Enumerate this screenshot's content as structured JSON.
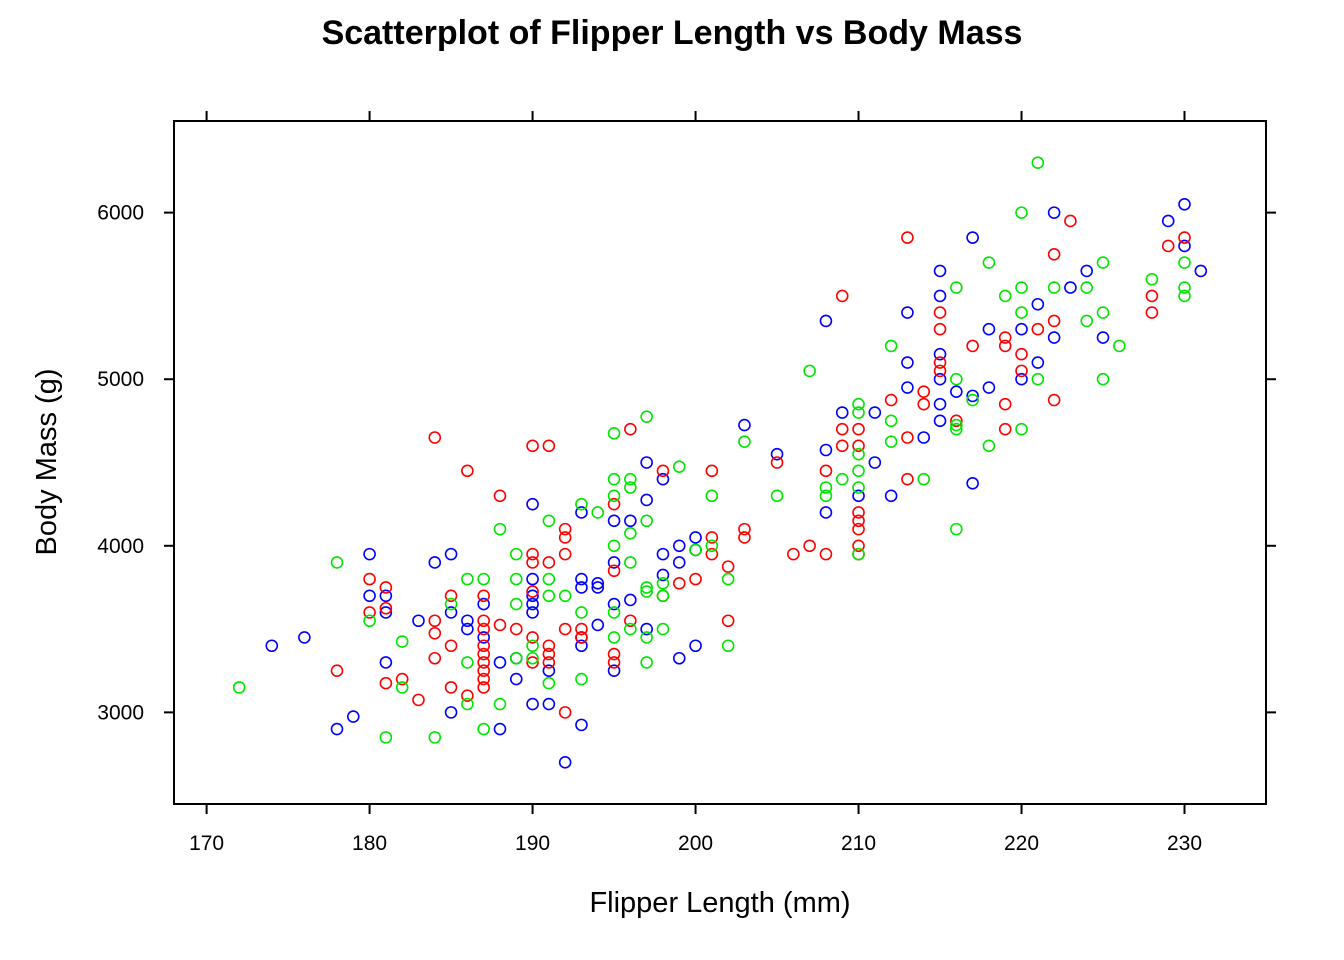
{
  "chart_data": {
    "type": "scatter",
    "title": "Scatterplot of Flipper Length vs Body Mass",
    "xlabel": "Flipper Length (mm)",
    "ylabel": "Body Mass (g)",
    "xlim": [
      168,
      235
    ],
    "ylim": [
      2450,
      6550
    ],
    "xticks": [
      170,
      180,
      190,
      200,
      210,
      220,
      230
    ],
    "yticks": [
      3000,
      4000,
      5000,
      6000
    ],
    "grid": false,
    "legend": "none",
    "marker": "open-circle",
    "series": [
      {
        "color": "#0000ff",
        "points": [
          [
            174,
            3400
          ],
          [
            176,
            3450
          ],
          [
            178,
            2900
          ],
          [
            179,
            2975
          ],
          [
            180,
            3950
          ],
          [
            180,
            3700
          ],
          [
            181,
            3700
          ],
          [
            181,
            3600
          ],
          [
            181,
            3300
          ],
          [
            183,
            3550
          ],
          [
            184,
            3900
          ],
          [
            185,
            3950
          ],
          [
            185,
            3000
          ],
          [
            185,
            3600
          ],
          [
            186,
            3500
          ],
          [
            186,
            3550
          ],
          [
            187,
            3650
          ],
          [
            187,
            3450
          ],
          [
            188,
            2900
          ],
          [
            188,
            3300
          ],
          [
            189,
            3200
          ],
          [
            189,
            3325
          ],
          [
            190,
            4250
          ],
          [
            190,
            3800
          ],
          [
            190,
            3700
          ],
          [
            190,
            3650
          ],
          [
            190,
            3600
          ],
          [
            190,
            3050
          ],
          [
            191,
            3050
          ],
          [
            191,
            3250
          ],
          [
            192,
            2700
          ],
          [
            193,
            2925
          ],
          [
            193,
            4200
          ],
          [
            193,
            3800
          ],
          [
            193,
            3750
          ],
          [
            193,
            3450
          ],
          [
            193,
            3400
          ],
          [
            194,
            3775
          ],
          [
            194,
            3750
          ],
          [
            194,
            3525
          ],
          [
            195,
            4150
          ],
          [
            195,
            3900
          ],
          [
            195,
            3650
          ],
          [
            195,
            3250
          ],
          [
            196,
            4150
          ],
          [
            196,
            3675
          ],
          [
            197,
            4500
          ],
          [
            197,
            4275
          ],
          [
            197,
            3500
          ],
          [
            198,
            4400
          ],
          [
            198,
            3950
          ],
          [
            198,
            3825
          ],
          [
            199,
            4000
          ],
          [
            199,
            3900
          ],
          [
            199,
            3325
          ],
          [
            200,
            4050
          ],
          [
            200,
            3975
          ],
          [
            200,
            3400
          ],
          [
            203,
            4725
          ],
          [
            205,
            4550
          ],
          [
            208,
            5350
          ],
          [
            208,
            4575
          ],
          [
            208,
            4200
          ],
          [
            209,
            4800
          ],
          [
            210,
            4300
          ],
          [
            211,
            4800
          ],
          [
            211,
            4500
          ],
          [
            212,
            4300
          ],
          [
            213,
            5400
          ],
          [
            213,
            5100
          ],
          [
            213,
            4950
          ],
          [
            214,
            4650
          ],
          [
            215,
            5650
          ],
          [
            215,
            5500
          ],
          [
            215,
            5150
          ],
          [
            215,
            5000
          ],
          [
            215,
            4850
          ],
          [
            215,
            4750
          ],
          [
            216,
            4925
          ],
          [
            217,
            5850
          ],
          [
            217,
            4900
          ],
          [
            217,
            4375
          ],
          [
            218,
            5300
          ],
          [
            218,
            4950
          ],
          [
            220,
            5300
          ],
          [
            221,
            5450
          ],
          [
            221,
            5100
          ],
          [
            222,
            6000
          ],
          [
            222,
            5250
          ],
          [
            223,
            5550
          ],
          [
            224,
            5650
          ],
          [
            225,
            5250
          ],
          [
            229,
            5950
          ],
          [
            230,
            6050
          ],
          [
            230,
            5800
          ],
          [
            231,
            5650
          ],
          [
            220,
            5000
          ]
        ]
      },
      {
        "color": "#ff0000",
        "points": [
          [
            178,
            3250
          ],
          [
            180,
            3800
          ],
          [
            180,
            3600
          ],
          [
            181,
            3750
          ],
          [
            181,
            3625
          ],
          [
            181,
            3175
          ],
          [
            182,
            3200
          ],
          [
            183,
            3075
          ],
          [
            184,
            4650
          ],
          [
            184,
            3550
          ],
          [
            184,
            3475
          ],
          [
            184,
            3325
          ],
          [
            185,
            3700
          ],
          [
            185,
            3400
          ],
          [
            185,
            3150
          ],
          [
            186,
            4450
          ],
          [
            186,
            3100
          ],
          [
            187,
            3700
          ],
          [
            187,
            3550
          ],
          [
            187,
            3500
          ],
          [
            187,
            3400
          ],
          [
            187,
            3350
          ],
          [
            187,
            3300
          ],
          [
            187,
            3250
          ],
          [
            187,
            3200
          ],
          [
            187,
            3150
          ],
          [
            188,
            4300
          ],
          [
            188,
            3525
          ],
          [
            189,
            3500
          ],
          [
            190,
            4600
          ],
          [
            190,
            3950
          ],
          [
            190,
            3900
          ],
          [
            190,
            3725
          ],
          [
            190,
            3450
          ],
          [
            190,
            3300
          ],
          [
            191,
            4600
          ],
          [
            191,
            3900
          ],
          [
            191,
            3400
          ],
          [
            191,
            3350
          ],
          [
            191,
            3300
          ],
          [
            192,
            4100
          ],
          [
            192,
            4050
          ],
          [
            192,
            3950
          ],
          [
            192,
            3500
          ],
          [
            192,
            3000
          ],
          [
            193,
            3500
          ],
          [
            193,
            3450
          ],
          [
            195,
            4250
          ],
          [
            195,
            3850
          ],
          [
            195,
            3350
          ],
          [
            195,
            3300
          ],
          [
            196,
            4700
          ],
          [
            196,
            3550
          ],
          [
            198,
            4450
          ],
          [
            198,
            3700
          ],
          [
            199,
            3775
          ],
          [
            200,
            3800
          ],
          [
            201,
            4450
          ],
          [
            201,
            4050
          ],
          [
            201,
            3950
          ],
          [
            202,
            3875
          ],
          [
            202,
            3550
          ],
          [
            203,
            4100
          ],
          [
            203,
            4050
          ],
          [
            205,
            4500
          ],
          [
            206,
            3950
          ],
          [
            207,
            4000
          ],
          [
            208,
            4450
          ],
          [
            208,
            3950
          ],
          [
            209,
            5500
          ],
          [
            209,
            4700
          ],
          [
            209,
            4600
          ],
          [
            210,
            4700
          ],
          [
            210,
            4600
          ],
          [
            210,
            4200
          ],
          [
            210,
            4150
          ],
          [
            210,
            4100
          ],
          [
            210,
            4000
          ],
          [
            210,
            3950
          ],
          [
            212,
            4875
          ],
          [
            213,
            5850
          ],
          [
            213,
            4650
          ],
          [
            213,
            4400
          ],
          [
            214,
            4925
          ],
          [
            214,
            4850
          ],
          [
            215,
            5400
          ],
          [
            215,
            5300
          ],
          [
            215,
            5100
          ],
          [
            215,
            5050
          ],
          [
            216,
            4750
          ],
          [
            217,
            5200
          ],
          [
            219,
            5250
          ],
          [
            219,
            5200
          ],
          [
            219,
            4850
          ],
          [
            219,
            4700
          ],
          [
            220,
            5150
          ],
          [
            220,
            5050
          ],
          [
            221,
            5300
          ],
          [
            222,
            5750
          ],
          [
            222,
            5350
          ],
          [
            222,
            4875
          ],
          [
            223,
            5950
          ],
          [
            228,
            5500
          ],
          [
            228,
            5400
          ],
          [
            229,
            5800
          ],
          [
            230,
            5850
          ]
        ]
      },
      {
        "color": "#00e600",
        "points": [
          [
            172,
            3150
          ],
          [
            178,
            3900
          ],
          [
            180,
            3550
          ],
          [
            181,
            2850
          ],
          [
            182,
            3425
          ],
          [
            182,
            3150
          ],
          [
            184,
            2850
          ],
          [
            185,
            3650
          ],
          [
            186,
            3800
          ],
          [
            186,
            3300
          ],
          [
            186,
            3050
          ],
          [
            187,
            3800
          ],
          [
            187,
            2900
          ],
          [
            188,
            4100
          ],
          [
            188,
            3050
          ],
          [
            189,
            3950
          ],
          [
            189,
            3800
          ],
          [
            189,
            3650
          ],
          [
            189,
            3325
          ],
          [
            190,
            3400
          ],
          [
            190,
            3325
          ],
          [
            191,
            4150
          ],
          [
            191,
            3800
          ],
          [
            191,
            3700
          ],
          [
            191,
            3175
          ],
          [
            192,
            3700
          ],
          [
            193,
            4250
          ],
          [
            193,
            3600
          ],
          [
            193,
            3200
          ],
          [
            194,
            4200
          ],
          [
            195,
            4675
          ],
          [
            195,
            4400
          ],
          [
            195,
            4300
          ],
          [
            195,
            4000
          ],
          [
            195,
            3600
          ],
          [
            195,
            3450
          ],
          [
            196,
            4400
          ],
          [
            196,
            4350
          ],
          [
            196,
            4075
          ],
          [
            196,
            3900
          ],
          [
            196,
            3500
          ],
          [
            197,
            4775
          ],
          [
            197,
            4150
          ],
          [
            197,
            3750
          ],
          [
            197,
            3725
          ],
          [
            197,
            3450
          ],
          [
            197,
            3300
          ],
          [
            198,
            3775
          ],
          [
            198,
            3700
          ],
          [
            198,
            3500
          ],
          [
            199,
            4475
          ],
          [
            200,
            3975
          ],
          [
            201,
            4300
          ],
          [
            201,
            4000
          ],
          [
            202,
            3800
          ],
          [
            202,
            3400
          ],
          [
            203,
            4625
          ],
          [
            205,
            4300
          ],
          [
            207,
            5050
          ],
          [
            208,
            4350
          ],
          [
            208,
            4300
          ],
          [
            209,
            4400
          ],
          [
            210,
            4850
          ],
          [
            210,
            4800
          ],
          [
            210,
            4550
          ],
          [
            210,
            4450
          ],
          [
            210,
            4350
          ],
          [
            210,
            3950
          ],
          [
            212,
            5200
          ],
          [
            212,
            4750
          ],
          [
            212,
            4625
          ],
          [
            214,
            4400
          ],
          [
            216,
            5550
          ],
          [
            216,
            5000
          ],
          [
            216,
            4725
          ],
          [
            216,
            4700
          ],
          [
            216,
            4100
          ],
          [
            217,
            4875
          ],
          [
            218,
            5700
          ],
          [
            218,
            4600
          ],
          [
            219,
            5500
          ],
          [
            220,
            6000
          ],
          [
            220,
            5550
          ],
          [
            220,
            5400
          ],
          [
            220,
            4700
          ],
          [
            221,
            6300
          ],
          [
            221,
            5000
          ],
          [
            222,
            5550
          ],
          [
            224,
            5550
          ],
          [
            224,
            5350
          ],
          [
            225,
            5700
          ],
          [
            225,
            5400
          ],
          [
            225,
            5000
          ],
          [
            226,
            5200
          ],
          [
            228,
            5600
          ],
          [
            230,
            5700
          ],
          [
            230,
            5550
          ],
          [
            230,
            5500
          ]
        ]
      }
    ]
  }
}
